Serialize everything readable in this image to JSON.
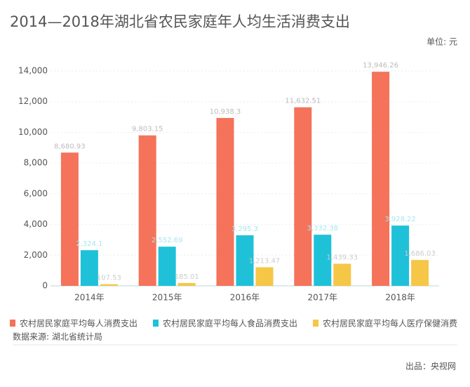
{
  "chart_data": {
    "type": "bar",
    "title": "2014—2018年湖北省农民家庭年人均生活消费支出",
    "unit": "单位: 元",
    "categories": [
      "2014年",
      "2015年",
      "2016年",
      "2017年",
      "2018年"
    ],
    "series": [
      {
        "name": "农村居民家庭平均每人消费支出",
        "color": "#f4735a",
        "label_color": "#bbbbbb",
        "values": [
          8680.93,
          9803.15,
          10938.3,
          11632.51,
          13946.26
        ],
        "value_labels": [
          "8,680.93",
          "9,803.15",
          "10,938.3",
          "11,632.51",
          "13,946.26"
        ]
      },
      {
        "name": "农村居民家庭平均每人食品消费支出",
        "color": "#1fc1d8",
        "label_color": "#a8e6ee",
        "values": [
          2324.1,
          2552.69,
          3295.3,
          3332.38,
          3928.22
        ],
        "value_labels": [
          "2,324.1",
          "2,552.69",
          "3,295.3",
          "3,332.38",
          "3,928.22"
        ]
      },
      {
        "name": "农村居民家庭平均每人医疗保健消费",
        "color": "#f6c646",
        "label_color": "#cccccc",
        "values": [
          107.53,
          185.01,
          1213.47,
          1439.33,
          1686.03
        ],
        "value_labels": [
          "107.53",
          "185.01",
          "1,213.47",
          "1,439.33",
          "1,686.03"
        ]
      }
    ],
    "ylim": [
      0,
      14000
    ],
    "yticks": [
      0,
      {
        "value": 2000,
        "label": "2,000"
      },
      {
        "value": 4000,
        "label": "4,000"
      },
      {
        "value": 6000,
        "label": "6,000"
      },
      {
        "value": 8000,
        "label": "8,000"
      },
      {
        "value": 10000,
        "label": "10,000"
      },
      {
        "value": 12000,
        "label": "12,000"
      },
      {
        "value": 14000,
        "label": "14,000"
      }
    ],
    "grid": true,
    "source": "数据来源: 湖北省统计局",
    "credit": "出品：央视网"
  }
}
